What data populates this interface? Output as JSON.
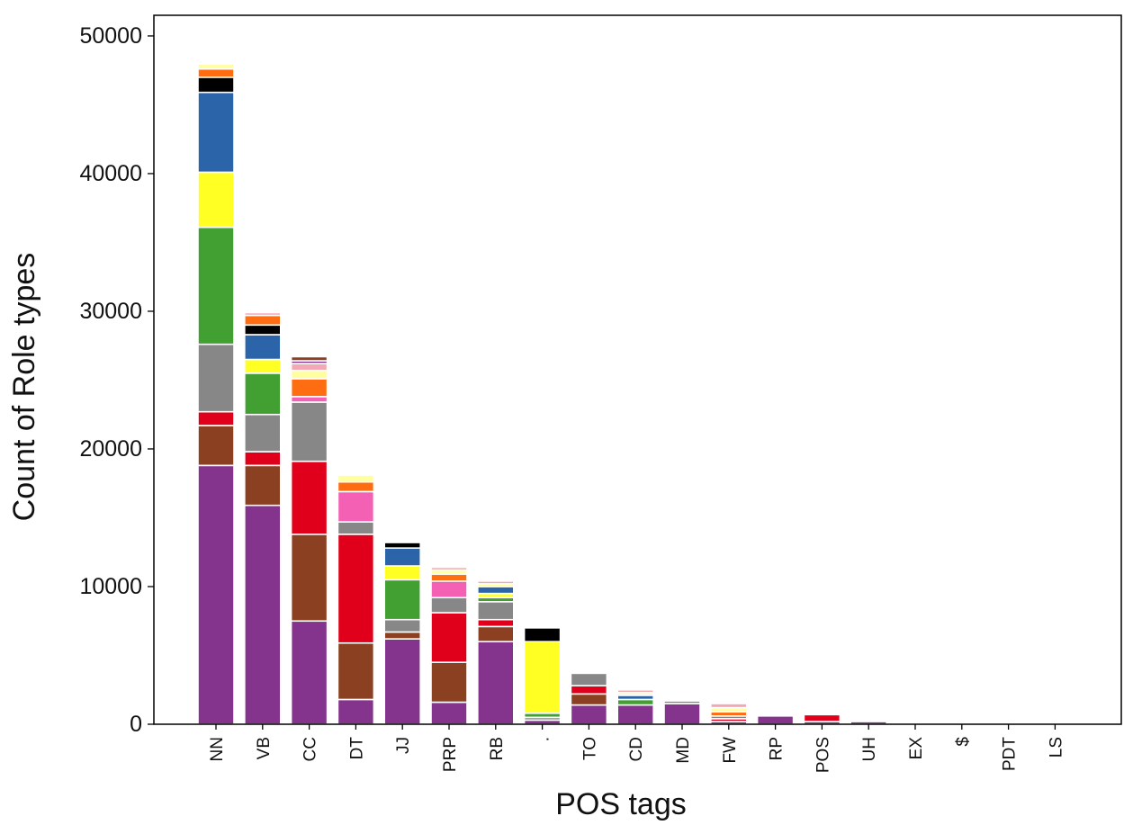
{
  "chart_data": {
    "type": "bar",
    "stacked": true,
    "title": "",
    "xlabel": "POS tags",
    "ylabel": "Count of Role types",
    "ylim": [
      0,
      51500
    ],
    "yticks": [
      0,
      10000,
      20000,
      30000,
      40000,
      50000
    ],
    "ytick_labels": [
      "0",
      "10000",
      "20000",
      "30000",
      "40000",
      "50000"
    ],
    "categories": [
      "NN",
      "VB",
      "CC",
      "DT",
      "JJ",
      "PRP",
      "RB",
      ".",
      "TO",
      "CD",
      "MD",
      "FW",
      "RP",
      "POS",
      "UH",
      "EX",
      "$",
      "PDT",
      "LS"
    ],
    "series_colors": [
      "#84348c",
      "#8b4021",
      "#e0001b",
      "#878787",
      "#42a033",
      "#ffff24",
      "#2b64a8",
      "#f360b4",
      "#000000",
      "#ff6d12",
      "#ffffa0",
      "#f4a8b4"
    ],
    "stacks": [
      [
        18800,
        2900,
        1000,
        4900,
        8500,
        4000,
        5800,
        0,
        1100,
        600,
        350,
        0
      ],
      [
        15900,
        2900,
        1000,
        2700,
        3000,
        1000,
        1800,
        0,
        700,
        700,
        0,
        200
      ],
      [
        7500,
        6300,
        5300,
        4300,
        0,
        0,
        0,
        400,
        0,
        1300,
        600,
        500,
        200,
        300
      ],
      [
        1800,
        4100,
        7900,
        900,
        0,
        0,
        0,
        2200,
        0,
        700,
        500
      ],
      [
        6200,
        500,
        0,
        900,
        2900,
        1000,
        1300,
        0,
        400
      ],
      [
        1600,
        2900,
        3600,
        1100,
        0,
        0,
        0,
        1200,
        0,
        500,
        300,
        200
      ],
      [
        6000,
        1100,
        500,
        1300,
        300,
        300,
        500,
        0,
        0,
        0,
        200,
        200
      ],
      [
        300,
        0,
        0,
        200,
        300,
        5200,
        0,
        0,
        1000
      ],
      [
        1400,
        800,
        600,
        900
      ],
      [
        1400,
        0,
        0,
        0,
        400,
        0,
        300,
        0,
        0,
        0,
        200,
        200
      ],
      [
        1500,
        0,
        0,
        200,
        0,
        0,
        0,
        0,
        0,
        0,
        0,
        100
      ],
      [
        200,
        0,
        200,
        200,
        0,
        0,
        0,
        0,
        0,
        300,
        300,
        300
      ],
      [
        600
      ],
      [
        200,
        0,
        500,
        0,
        0,
        0,
        0,
        0,
        0,
        0,
        0,
        100
      ],
      [
        200,
        0,
        0,
        0,
        0,
        0,
        0,
        0,
        0,
        0,
        0,
        100
      ],
      [
        30
      ],
      [
        20
      ],
      [
        15
      ],
      [
        10
      ]
    ]
  }
}
